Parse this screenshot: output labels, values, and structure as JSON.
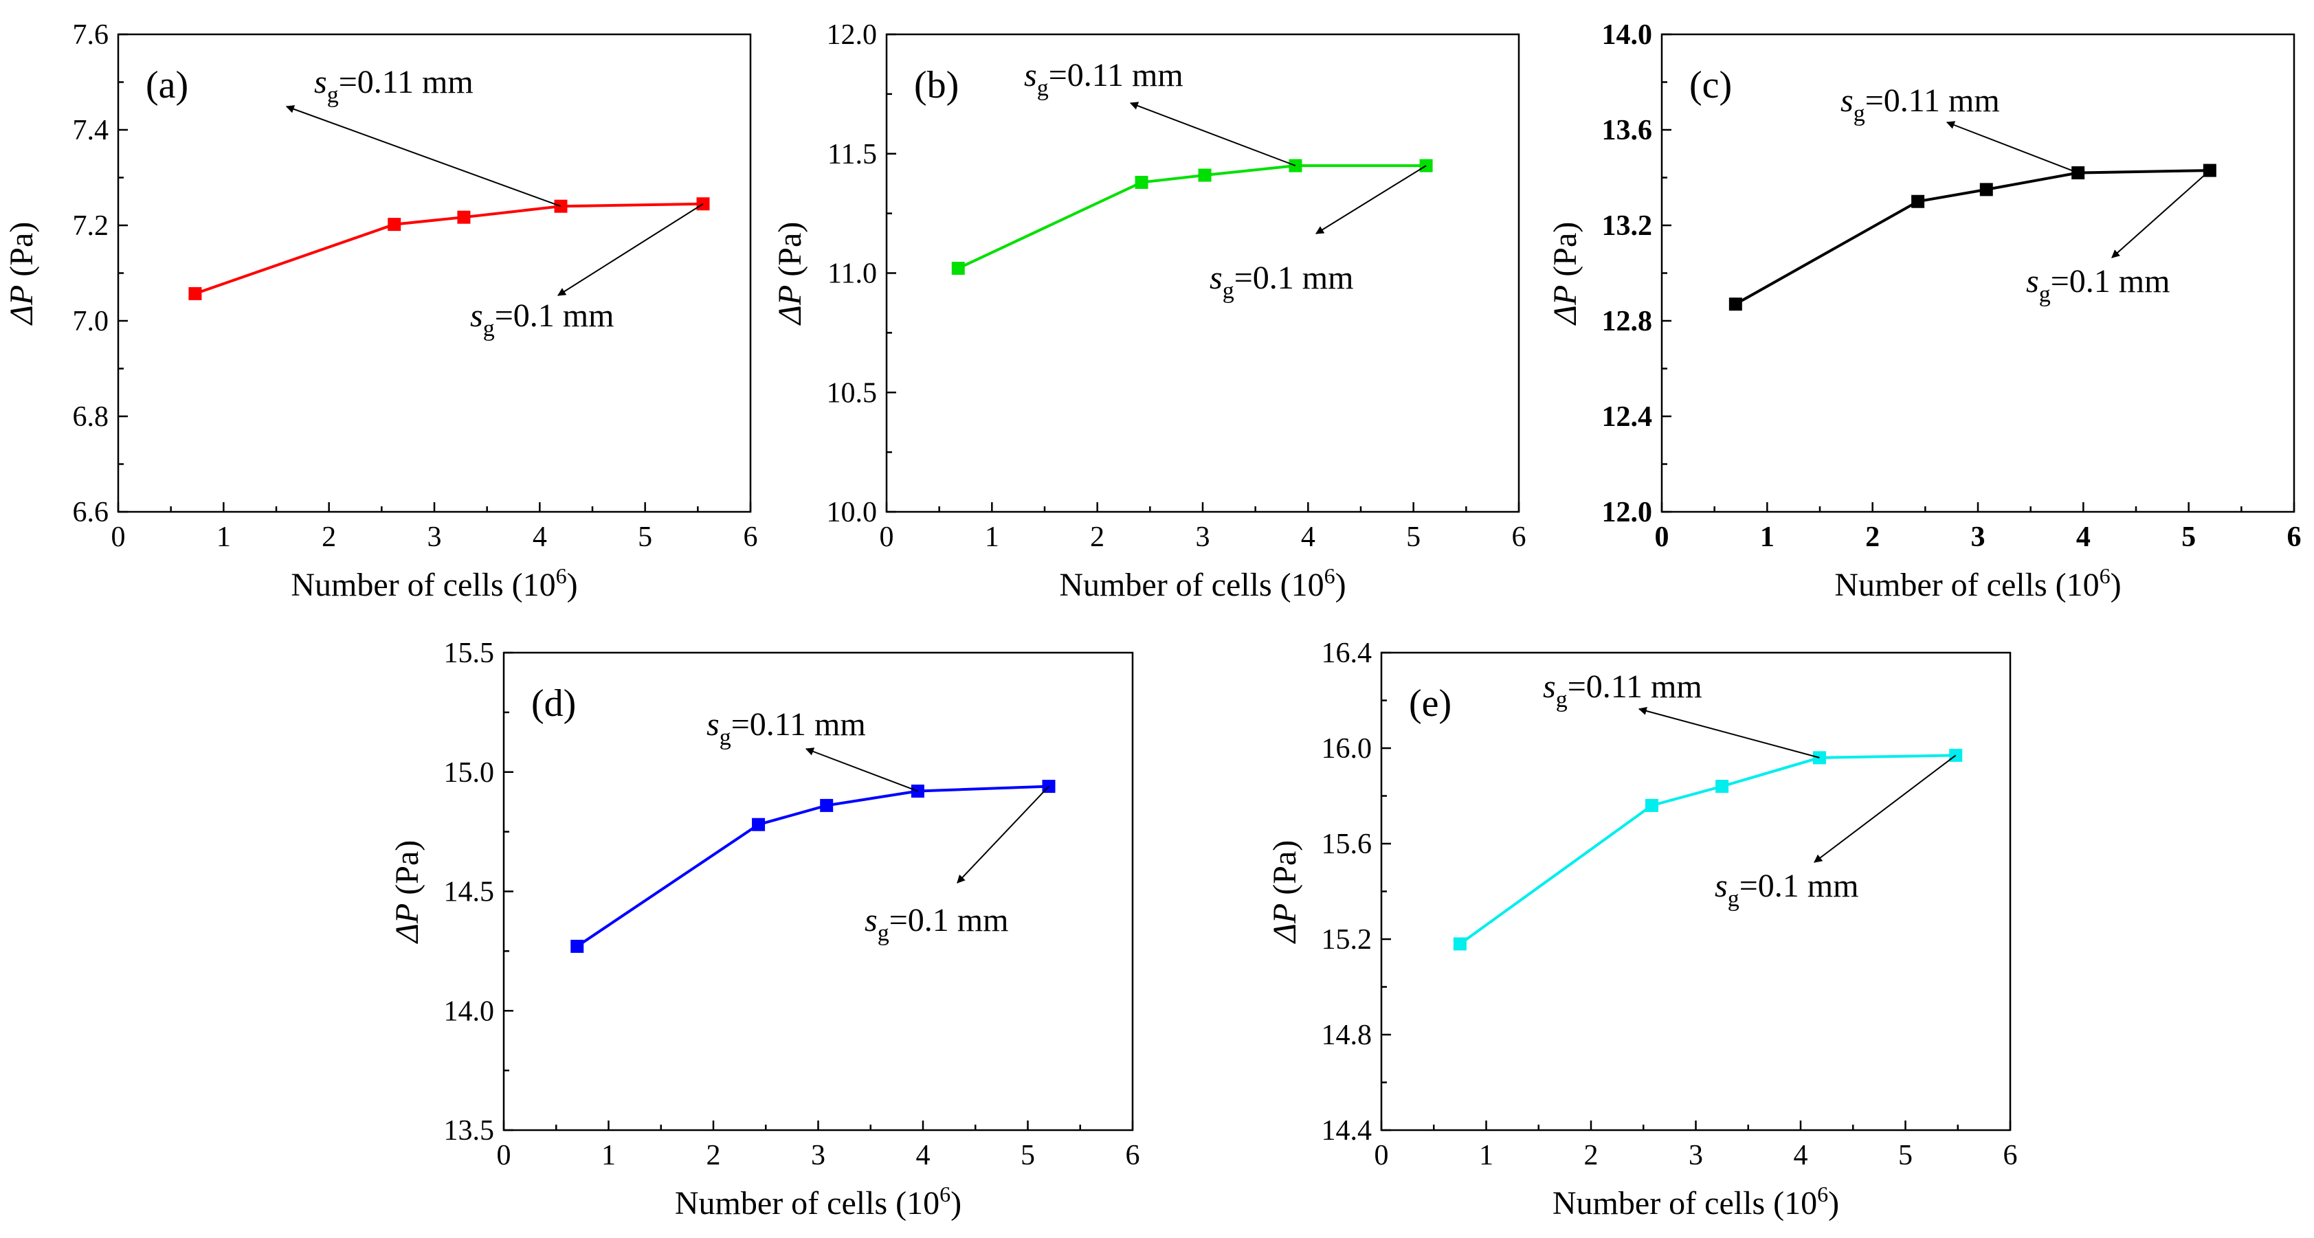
{
  "chart_data": [
    {
      "type": "line",
      "panel_label": "(a)",
      "xlabel": "Number of cells (10",
      "xlabel_sup": "6",
      "xlabel_end": ")",
      "ylabel_delta": "ΔP",
      "ylabel_unit": " (Pa)",
      "xlim": [
        0,
        6
      ],
      "ylim": [
        6.6,
        7.6
      ],
      "xticks": [
        "0",
        "1",
        "2",
        "3",
        "4",
        "5",
        "6"
      ],
      "yticks": [
        "6.6",
        "6.8",
        "7.0",
        "7.2",
        "7.4",
        "7.6"
      ],
      "bold_ticks": false,
      "color": "#ff0000",
      "x": [
        0.73,
        2.62,
        3.28,
        4.2,
        5.55
      ],
      "y": [
        7.057,
        7.202,
        7.217,
        7.24,
        7.245
      ],
      "annotations": [
        {
          "sym": "s",
          "sub": "g",
          "text": "=0.11 mm",
          "point_index": 3
        },
        {
          "sym": "s",
          "sub": "g",
          "text": "=0.1 mm",
          "point_index": 4
        }
      ]
    },
    {
      "type": "line",
      "panel_label": "(b)",
      "xlabel": "Number of cells (10",
      "xlabel_sup": "6",
      "xlabel_end": ")",
      "ylabel_delta": "ΔP",
      "ylabel_unit": " (Pa)",
      "xlim": [
        0,
        6
      ],
      "ylim": [
        10.0,
        12.0
      ],
      "xticks": [
        "0",
        "1",
        "2",
        "3",
        "4",
        "5",
        "6"
      ],
      "yticks": [
        "10.0",
        "10.5",
        "11.0",
        "11.5",
        "12.0"
      ],
      "bold_ticks": false,
      "color": "#00e000",
      "x": [
        0.68,
        2.42,
        3.02,
        3.88,
        5.12
      ],
      "y": [
        11.02,
        11.38,
        11.41,
        11.45,
        11.45
      ],
      "annotations": [
        {
          "sym": "s",
          "sub": "g",
          "text": "=0.11 mm",
          "point_index": 3
        },
        {
          "sym": "s",
          "sub": "g",
          "text": "=0.1 mm",
          "point_index": 4
        }
      ]
    },
    {
      "type": "line",
      "panel_label": "(c)",
      "xlabel": "Number of cells (10",
      "xlabel_sup": "6",
      "xlabel_end": ")",
      "ylabel_delta": "ΔP",
      "ylabel_unit": " (Pa)",
      "xlim": [
        0,
        6
      ],
      "ylim": [
        12.0,
        14.0
      ],
      "xticks": [
        "0",
        "1",
        "2",
        "3",
        "4",
        "5",
        "6"
      ],
      "yticks": [
        "12.0",
        "12.4",
        "12.8",
        "13.2",
        "13.6",
        "14.0"
      ],
      "bold_ticks": true,
      "color": "#000000",
      "x": [
        0.7,
        2.43,
        3.08,
        3.95,
        5.2
      ],
      "y": [
        12.87,
        13.3,
        13.35,
        13.42,
        13.43
      ],
      "annotations": [
        {
          "sym": "s",
          "sub": "g",
          "text": "=0.11 mm",
          "point_index": 3
        },
        {
          "sym": "s",
          "sub": "g",
          "text": "=0.1 mm",
          "point_index": 4
        }
      ]
    },
    {
      "type": "line",
      "panel_label": "(d)",
      "xlabel": "Number of cells (10",
      "xlabel_sup": "6",
      "xlabel_end": ")",
      "ylabel_delta": "ΔP",
      "ylabel_unit": " (Pa)",
      "xlim": [
        0,
        6
      ],
      "ylim": [
        13.5,
        15.5
      ],
      "xticks": [
        "0",
        "1",
        "2",
        "3",
        "4",
        "5",
        "6"
      ],
      "yticks": [
        "13.5",
        "14.0",
        "14.5",
        "15.0",
        "15.5"
      ],
      "bold_ticks": false,
      "color": "#0000ff",
      "x": [
        0.7,
        2.43,
        3.08,
        3.95,
        5.2
      ],
      "y": [
        14.27,
        14.78,
        14.86,
        14.92,
        14.94
      ],
      "annotations": [
        {
          "sym": "s",
          "sub": "g",
          "text": "=0.11 mm",
          "point_index": 3
        },
        {
          "sym": "s",
          "sub": "g",
          "text": "=0.1 mm",
          "point_index": 4
        }
      ]
    },
    {
      "type": "line",
      "panel_label": "(e)",
      "xlabel": "Number of cells (10",
      "xlabel_sup": "6",
      "xlabel_end": ")",
      "ylabel_delta": "ΔP",
      "ylabel_unit": " (Pa)",
      "xlim": [
        0,
        6
      ],
      "ylim": [
        14.4,
        16.4
      ],
      "xticks": [
        "0",
        "1",
        "2",
        "3",
        "4",
        "5",
        "6"
      ],
      "yticks": [
        "14.4",
        "14.8",
        "15.2",
        "15.6",
        "16.0",
        "16.4"
      ],
      "bold_ticks": false,
      "color": "#00eeee",
      "x": [
        0.75,
        2.58,
        3.25,
        4.18,
        5.48
      ],
      "y": [
        15.18,
        15.76,
        15.84,
        15.96,
        15.97
      ],
      "annotations": [
        {
          "sym": "s",
          "sub": "g",
          "text": "=0.11 mm",
          "point_index": 3
        },
        {
          "sym": "s",
          "sub": "g",
          "text": "=0.1 mm",
          "point_index": 4
        }
      ]
    }
  ]
}
